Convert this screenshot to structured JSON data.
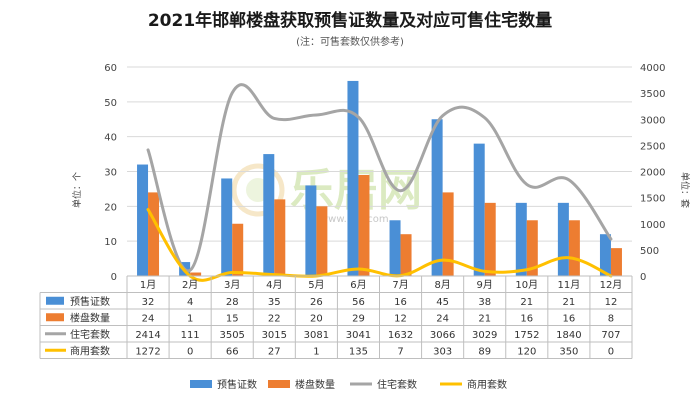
{
  "chart_data": {
    "type": "bar",
    "title": "2021年邯郸楼盘获取预售证数量及对应可售住宅数量",
    "subtitle": "(注：可售套数仅供参考)",
    "categories": [
      "1月",
      "2月",
      "3月",
      "4月",
      "5月",
      "6月",
      "7月",
      "8月",
      "9月",
      "10月",
      "11月",
      "12月"
    ],
    "ylabel_left": "单位：个",
    "ylabel_right": "单位：套",
    "ylim_left": [
      0,
      60
    ],
    "ylim_right": [
      0,
      4000
    ],
    "yticks_left": [
      "0",
      "10",
      "20",
      "30",
      "40",
      "50",
      "60"
    ],
    "yticks_right": [
      "0",
      "500",
      "1000",
      "1500",
      "2000",
      "2500",
      "3000",
      "3500",
      "4000"
    ],
    "grid": true,
    "legend_position": "bottom",
    "series": [
      {
        "name": "预售证数",
        "kind": "bar",
        "axis": "left",
        "color": "#4a8fd6",
        "values": [
          32,
          4,
          28,
          35,
          26,
          56,
          16,
          45,
          38,
          21,
          21,
          12
        ]
      },
      {
        "name": "楼盘数量",
        "kind": "bar",
        "axis": "left",
        "color": "#ed7d31",
        "values": [
          24,
          1,
          15,
          22,
          20,
          29,
          12,
          24,
          21,
          16,
          16,
          8
        ]
      },
      {
        "name": "住宅套数",
        "kind": "line",
        "axis": "right",
        "color": "#a5a5a5",
        "values": [
          2414,
          111,
          3505,
          3015,
          3081,
          3041,
          1632,
          3066,
          3029,
          1752,
          1840,
          707
        ]
      },
      {
        "name": "商用套数",
        "kind": "line",
        "axis": "right",
        "color": "#ffc000",
        "values": [
          1272,
          0,
          66,
          27,
          1,
          135,
          7,
          303,
          89,
          120,
          350,
          0
        ]
      }
    ]
  },
  "watermark": {
    "main": "乐居网",
    "url": "www.Ljia.com",
    "reg": "®"
  }
}
